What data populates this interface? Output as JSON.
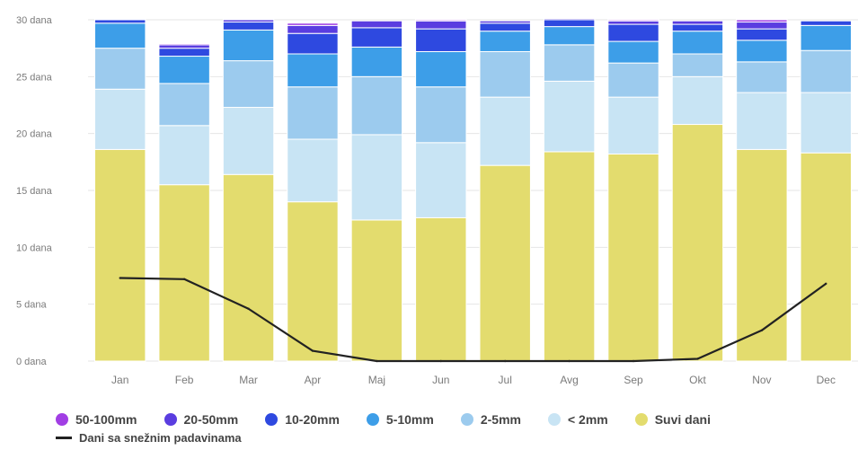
{
  "chart_data": {
    "type": "bar",
    "stacked": true,
    "categories": [
      "Jan",
      "Feb",
      "Mar",
      "Apr",
      "Maj",
      "Jun",
      "Jul",
      "Avg",
      "Sep",
      "Okt",
      "Nov",
      "Dec"
    ],
    "y_ticks": [
      "0 dana",
      "5 dana",
      "10 dana",
      "15 dana",
      "20 dana",
      "25 dana",
      "30 dana"
    ],
    "ylim": [
      0,
      30
    ],
    "series": [
      {
        "name": "Suvi dani",
        "color": "#e3dc6e",
        "values": [
          18.6,
          15.5,
          16.4,
          14.0,
          12.4,
          12.6,
          17.2,
          18.4,
          18.2,
          20.8,
          18.6,
          18.3
        ]
      },
      {
        "name": "< 2mm",
        "color": "#c8e4f4",
        "values": [
          5.3,
          5.2,
          5.9,
          5.5,
          7.5,
          6.6,
          6.0,
          6.2,
          5.0,
          4.2,
          5.0,
          5.3
        ]
      },
      {
        "name": "2-5mm",
        "color": "#9ccbee",
        "values": [
          3.6,
          3.7,
          4.1,
          4.6,
          5.1,
          4.9,
          4.0,
          3.2,
          3.0,
          2.0,
          2.7,
          3.7
        ]
      },
      {
        "name": "5-10mm",
        "color": "#3d9ee8",
        "values": [
          2.2,
          2.4,
          2.7,
          2.9,
          2.6,
          3.1,
          1.8,
          1.6,
          1.9,
          2.0,
          1.9,
          2.2
        ]
      },
      {
        "name": "10-20mm",
        "color": "#2e49e0",
        "values": [
          0.3,
          0.7,
          0.7,
          1.8,
          1.7,
          2.0,
          0.7,
          0.6,
          1.5,
          0.6,
          1.0,
          0.4
        ]
      },
      {
        "name": "20-50mm",
        "color": "#5a3de0",
        "values": [
          0.0,
          0.3,
          0.2,
          0.7,
          0.6,
          0.7,
          0.2,
          0.1,
          0.3,
          0.3,
          0.6,
          0.0
        ]
      },
      {
        "name": "50-100mm",
        "color": "#a13ee4",
        "values": [
          0.0,
          0.1,
          0.0,
          0.2,
          0.0,
          0.1,
          0.0,
          0.0,
          0.1,
          0.0,
          0.2,
          0.0
        ]
      }
    ],
    "line": {
      "name": "Dani sa snežnim padavinama",
      "color": "#222222",
      "values": [
        7.3,
        7.2,
        4.6,
        0.9,
        0.0,
        0.0,
        0.0,
        0.0,
        0.0,
        0.2,
        2.7,
        6.8
      ]
    },
    "legend": {
      "position": "bottom",
      "row1": [
        {
          "label": "50-100mm",
          "color": "#a13ee4"
        },
        {
          "label": "20-50mm",
          "color": "#5a3de0"
        },
        {
          "label": "10-20mm",
          "color": "#2e49e0"
        },
        {
          "label": "5-10mm",
          "color": "#3d9ee8"
        },
        {
          "label": "2-5mm",
          "color": "#9ccbee"
        },
        {
          "label": "< 2mm",
          "color": "#c8e4f4"
        },
        {
          "label": "Suvi dani",
          "color": "#e3dc6e"
        }
      ],
      "row2": {
        "label": "Dani sa snežnim padavinama"
      }
    }
  }
}
